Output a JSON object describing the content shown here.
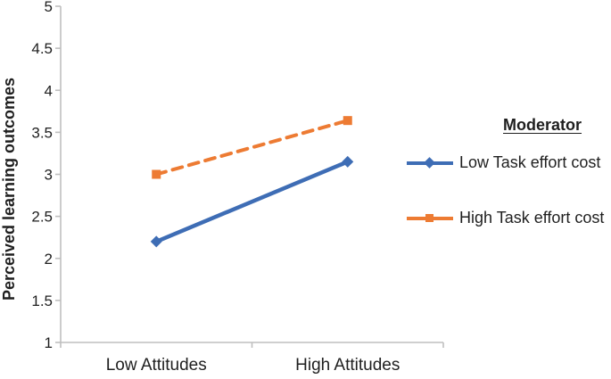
{
  "chart_data": {
    "type": "line",
    "title": "",
    "xlabel": "",
    "ylabel": "Perceived learning outcomes",
    "categories": [
      "Low Attitudes",
      "High Attitudes"
    ],
    "ylim": [
      1,
      5
    ],
    "yticks": [
      1,
      1.5,
      2,
      2.5,
      3,
      3.5,
      4,
      4.5,
      5
    ],
    "grid": false,
    "legend": {
      "title": "Moderator",
      "position": "right"
    },
    "series": [
      {
        "name": "Low Task effort cost",
        "values": [
          2.2,
          3.15
        ],
        "color": "#3E6DB5",
        "line_style": "solid",
        "marker": "diamond"
      },
      {
        "name": "High Task effort cost",
        "values": [
          3.0,
          3.64
        ],
        "color": "#ED7B33",
        "line_style": "dashed",
        "marker": "square"
      }
    ],
    "axis_color": "#BFBFBF",
    "text_color": "#1f1f1f"
  }
}
